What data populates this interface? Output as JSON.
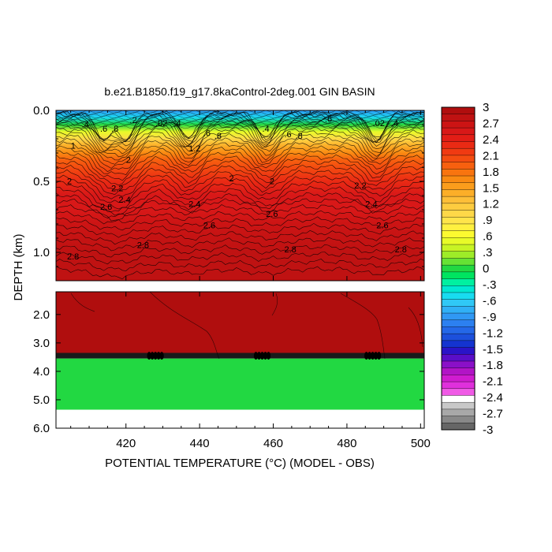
{
  "chart_data": {
    "type": "heatmap",
    "title": "b.e21.B1850.f19_g17.8kaControl-2deg.001 GIN BASIN",
    "xlabel": "POTENTIAL TEMPERATURE (°C) (MODEL - OBS)",
    "ylabel": "DEPTH (km)",
    "xlim": [
      401,
      501
    ],
    "x_ticks": [
      "420",
      "440",
      "460",
      "480",
      "500"
    ],
    "x_tick_values": [
      420,
      440,
      460,
      480,
      500
    ],
    "panels": [
      {
        "name": "upper",
        "ylim": [
          0.0,
          1.2
        ],
        "y_ticks": [
          "0.0",
          "0.5",
          "1.0"
        ],
        "y_tick_values": [
          0.0,
          0.5,
          1.0
        ]
      },
      {
        "name": "lower",
        "ylim": [
          1.2,
          6.0
        ],
        "y_ticks": [
          "2.0",
          "3.0",
          "4.0",
          "5.0",
          "6.0"
        ],
        "y_tick_values": [
          2.0,
          3.0,
          4.0,
          5.0,
          6.0
        ]
      }
    ],
    "upper_profile": {
      "depth": [
        0.0,
        0.05,
        0.1,
        0.15,
        0.2,
        0.25,
        0.3,
        0.35,
        0.4,
        0.5,
        0.6,
        0.7,
        0.8,
        1.0,
        1.2
      ],
      "value": [
        -0.9,
        -0.5,
        0.0,
        0.5,
        1.0,
        1.4,
        1.7,
        1.9,
        2.1,
        2.3,
        2.5,
        2.6,
        2.7,
        2.8,
        2.85
      ]
    },
    "lower_bands": [
      {
        "from": 1.2,
        "to": 3.35,
        "value": 2.9
      },
      {
        "from": 3.35,
        "to": 3.55,
        "value": "contour cluster"
      },
      {
        "from": 3.55,
        "to": 5.35,
        "value": 0.0
      },
      {
        "from": 5.35,
        "to": 6.0,
        "value": "missing"
      }
    ],
    "contour_labels": [
      {
        "text": "1",
        "x": 405,
        "depth": 0.27
      },
      {
        "text": ".4",
        "x": 408,
        "depth": 0.12
      },
      {
        "text": ".6",
        "x": 413,
        "depth": 0.15
      },
      {
        "text": ".8",
        "x": 416,
        "depth": 0.15
      },
      {
        "text": ".2",
        "x": 421,
        "depth": 0.09
      },
      {
        "text": ".02",
        "x": 428,
        "depth": 0.11
      },
      {
        "text": ".4",
        "x": 433,
        "depth": 0.11
      },
      {
        "text": ".6",
        "x": 441,
        "depth": 0.18
      },
      {
        "text": ".8",
        "x": 444,
        "depth": 0.2
      },
      {
        "text": "1.2",
        "x": 437,
        "depth": 0.29
      },
      {
        "text": "2",
        "x": 448,
        "depth": 0.5
      },
      {
        "text": "2",
        "x": 404,
        "depth": 0.52
      },
      {
        "text": "2",
        "x": 420,
        "depth": 0.37
      },
      {
        "text": "2.2",
        "x": 416,
        "depth": 0.57
      },
      {
        "text": "2.4",
        "x": 418,
        "depth": 0.65
      },
      {
        "text": "2.6",
        "x": 413,
        "depth": 0.7
      },
      {
        "text": "2.4",
        "x": 437,
        "depth": 0.68
      },
      {
        "text": "2.6",
        "x": 441,
        "depth": 0.83
      },
      {
        "text": "2.8",
        "x": 423,
        "depth": 0.97
      },
      {
        "text": "2.8",
        "x": 404,
        "depth": 1.05
      },
      {
        "text": ".4",
        "x": 457,
        "depth": 0.15
      },
      {
        "text": ".6",
        "x": 463,
        "depth": 0.19
      },
      {
        "text": ".8",
        "x": 466,
        "depth": 0.2
      },
      {
        "text": "2",
        "x": 459,
        "depth": 0.52
      },
      {
        "text": "2.6",
        "x": 458,
        "depth": 0.75
      },
      {
        "text": "2.8",
        "x": 463,
        "depth": 1.0
      },
      {
        "text": ".6",
        "x": 474,
        "depth": 0.08
      },
      {
        "text": ".02",
        "x": 487,
        "depth": 0.11
      },
      {
        "text": ".4",
        "x": 492,
        "depth": 0.11
      },
      {
        "text": "2.2",
        "x": 482,
        "depth": 0.55
      },
      {
        "text": "2.4",
        "x": 485,
        "depth": 0.68
      },
      {
        "text": "2.6",
        "x": 488,
        "depth": 0.83
      },
      {
        "text": "2.8",
        "x": 493,
        "depth": 1.0
      }
    ],
    "colorbar": {
      "labels": [
        "3",
        "2.7",
        "2.4",
        "2.1",
        "1.8",
        "1.5",
        "1.2",
        ".9",
        ".6",
        ".3",
        "0",
        "-.3",
        "-.6",
        "-.9",
        "-1.2",
        "-1.5",
        "-1.8",
        "-2.1",
        "-2.4",
        "-2.7",
        "-3"
      ],
      "label_values": [
        3,
        2.7,
        2.4,
        2.1,
        1.8,
        1.5,
        1.2,
        0.9,
        0.6,
        0.3,
        0,
        -0.3,
        -0.6,
        -0.9,
        -1.2,
        -1.5,
        -1.8,
        -2.1,
        -2.4,
        -2.7,
        -3
      ],
      "colors": [
        "#b00e0e",
        "#bf1212",
        "#cc1414",
        "#d81818",
        "#e21d16",
        "#ea2a14",
        "#f03a12",
        "#f44c10",
        "#f7600f",
        "#f9740f",
        "#fa8a12",
        "#fb9d1c",
        "#fcae28",
        "#fdbe38",
        "#fdcc40",
        "#fed848",
        "#ffe44a",
        "#fff040",
        "#fcfa30",
        "#e8fb28",
        "#c8f424",
        "#9eec28",
        "#66e234",
        "#22d842",
        "#00e460",
        "#00f0a0",
        "#00e8d2",
        "#18dcf0",
        "#30c8f6",
        "#30b0f6",
        "#3098f4",
        "#2c80f0",
        "#2468e8",
        "#1c50dc",
        "#1434d0",
        "#2a14c8",
        "#5a0ec8",
        "#8a10c8",
        "#b214c6",
        "#d01cd0",
        "#e030dc",
        "#f05ae6",
        "#ffffff",
        "#c8c8c8",
        "#a8a8a8",
        "#888888",
        "#666666"
      ]
    }
  }
}
